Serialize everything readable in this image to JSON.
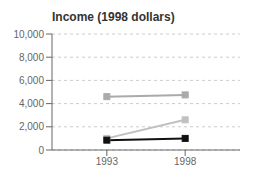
{
  "chart_data": {
    "type": "line",
    "title": "Income (1998 dollars)",
    "x": [
      1993,
      1998
    ],
    "series": [
      {
        "color": "#aaaaaa",
        "marker": "square",
        "values": [
          4600,
          4750
        ]
      },
      {
        "color": "#c0c0c0",
        "marker": "square",
        "values": [
          1000,
          2600
        ]
      },
      {
        "color": "#111111",
        "marker": "square",
        "values": [
          850,
          1000
        ]
      }
    ],
    "xlim": [
      1989.5,
      2001.5
    ],
    "xticks": [
      1993,
      1998
    ],
    "ylim": [
      0,
      10000
    ],
    "yticks": [
      {
        "value": 0,
        "label": "0"
      },
      {
        "value": 2000,
        "label": "2,000"
      },
      {
        "value": 4000,
        "label": "4,000"
      },
      {
        "value": 6000,
        "label": "6,000"
      },
      {
        "value": 8000,
        "label": "8,000"
      },
      {
        "value": 10000,
        "label": "10,000"
      }
    ],
    "grid": true
  }
}
